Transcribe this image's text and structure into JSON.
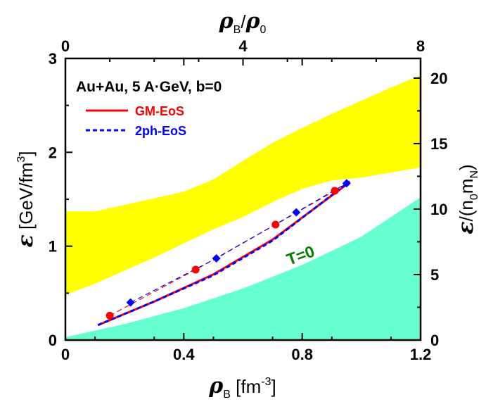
{
  "chart_data": {
    "type": "line",
    "axes": {
      "bottom": {
        "label_symbol": "ρ",
        "label_sub": "B",
        "label_unit": " [fm",
        "label_exp": "-3",
        "label_close": "]",
        "range": [
          0,
          1.2
        ],
        "ticks": [
          "0",
          "0.4",
          "0.8",
          "1.2"
        ]
      },
      "top": {
        "label_num": "ρ",
        "label_num_sub": "B",
        "label_slash": "/",
        "label_den": "ρ",
        "label_den_sub": "0",
        "range": [
          0,
          8
        ],
        "ticks": [
          "0",
          "4",
          "8"
        ]
      },
      "left": {
        "label_symbol": "ε",
        "label_unit": " [GeV/fm",
        "label_exp": "3",
        "label_close": "]",
        "range": [
          0,
          3
        ],
        "ticks": [
          "0",
          "1",
          "2",
          "3"
        ]
      },
      "right": {
        "label_symbol": "ε",
        "label_open": "/(n",
        "label_sub1": "0",
        "label_m": "m",
        "label_sub2": "N",
        "label_close": ")",
        "range": [
          0,
          21.5
        ],
        "ticks": [
          "0",
          "5",
          "10",
          "15",
          "20"
        ]
      }
    },
    "annotation": "Au+Au, 5 A·GeV, b=0",
    "region_label": "T=0",
    "colors": {
      "band": "#ffff00",
      "t0_region": "#66ffd0",
      "gm": "#ff0000",
      "twoph": "#0000ff",
      "t0_label": "#008000"
    },
    "legend": [
      {
        "name": "GM-EoS",
        "color": "#ff0000",
        "style": "solid"
      },
      {
        "name": "2ph-EoS",
        "color": "#0000ff",
        "style": "dashed"
      }
    ],
    "band_lower": [
      [
        0,
        0.48
      ],
      [
        0.1,
        0.6
      ],
      [
        0.2,
        0.74
      ],
      [
        0.3,
        0.88
      ],
      [
        0.4,
        1.03
      ],
      [
        0.5,
        1.18
      ],
      [
        0.6,
        1.31
      ],
      [
        0.7,
        1.47
      ],
      [
        0.8,
        1.61
      ],
      [
        0.9,
        1.7
      ],
      [
        1.0,
        1.73
      ],
      [
        1.2,
        1.84
      ]
    ],
    "band_upper": [
      [
        0,
        1.37
      ],
      [
        0.1,
        1.37
      ],
      [
        0.2,
        1.44
      ],
      [
        0.3,
        1.51
      ],
      [
        0.4,
        1.58
      ],
      [
        0.5,
        1.71
      ],
      [
        0.6,
        1.91
      ],
      [
        0.7,
        2.1
      ],
      [
        0.8,
        2.26
      ],
      [
        0.9,
        2.41
      ],
      [
        1.0,
        2.55
      ],
      [
        1.1,
        2.69
      ],
      [
        1.2,
        2.82
      ]
    ],
    "t0_upper": [
      [
        0,
        0.03
      ],
      [
        0.2,
        0.17
      ],
      [
        0.4,
        0.34
      ],
      [
        0.6,
        0.55
      ],
      [
        0.8,
        0.8
      ],
      [
        1.0,
        1.1
      ],
      [
        1.2,
        1.52
      ]
    ],
    "series": [
      {
        "name": "GM-EoS",
        "line": [
          [
            0.11,
            0.16
          ],
          [
            0.3,
            0.41
          ],
          [
            0.5,
            0.7
          ],
          [
            0.7,
            1.07
          ],
          [
            0.96,
            1.68
          ]
        ],
        "points": [
          [
            0.15,
            0.26
          ],
          [
            0.44,
            0.75
          ],
          [
            0.71,
            1.23
          ],
          [
            0.91,
            1.59
          ]
        ]
      },
      {
        "name": "2ph-EoS",
        "line": [
          [
            0.11,
            0.16
          ],
          [
            0.3,
            0.41
          ],
          [
            0.5,
            0.69
          ],
          [
            0.7,
            1.06
          ],
          [
            0.96,
            1.69
          ]
        ],
        "points": [
          [
            0.22,
            0.4
          ],
          [
            0.51,
            0.87
          ],
          [
            0.78,
            1.36
          ],
          [
            0.95,
            1.67
          ]
        ]
      }
    ]
  }
}
